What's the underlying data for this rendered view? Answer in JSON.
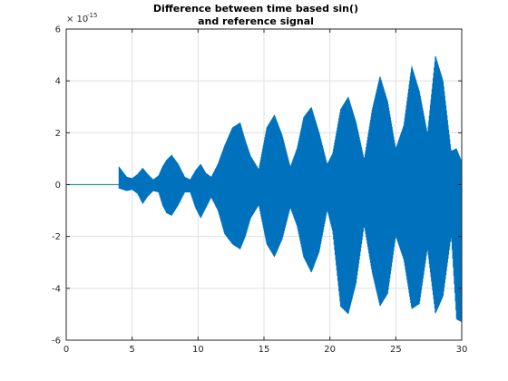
{
  "chart_data": {
    "type": "line",
    "title_line1": "Difference between time based sin()",
    "title_line2": "and reference signal",
    "xlabel": "",
    "ylabel": "",
    "xlim": [
      0,
      30
    ],
    "ylim": [
      -6,
      6
    ],
    "y_exponent_base": "× 10",
    "y_exponent_power": "-15",
    "x_ticks": [
      0,
      5,
      10,
      15,
      20,
      25,
      30
    ],
    "x_tick_labels": [
      "0",
      "5",
      "10",
      "15",
      "20",
      "25",
      "30"
    ],
    "y_ticks": [
      -6,
      -4,
      -2,
      0,
      2,
      4,
      6
    ],
    "y_tick_labels": [
      "-6",
      "-4",
      "-2",
      "0",
      "2",
      "4",
      "6"
    ],
    "grid": true,
    "colors": {
      "line": "#0072BD",
      "zero_line": "#2A9D8F",
      "grid": "#DFDFDF",
      "axis": "#262626"
    },
    "flat_until": 4.0,
    "envelope": {
      "x": [
        4.0,
        4.3,
        4.6,
        5.0,
        5.4,
        5.8,
        6.2,
        6.6,
        7.0,
        7.3,
        7.6,
        8.0,
        8.5,
        9.0,
        9.4,
        9.8,
        10.2,
        10.6,
        11.0,
        11.5,
        12.0,
        12.6,
        13.2,
        13.6,
        14.0,
        14.6,
        15.2,
        15.8,
        16.4,
        17.0,
        17.5,
        18.0,
        18.6,
        19.2,
        19.8,
        20.2,
        20.8,
        21.4,
        22.0,
        22.6,
        23.2,
        23.8,
        24.4,
        25.0,
        25.6,
        26.2,
        26.8,
        27.4,
        28.0,
        28.6,
        29.2,
        29.6,
        30.0
      ],
      "upper": [
        0.7,
        0.5,
        0.3,
        0.25,
        0.4,
        0.65,
        0.4,
        0.2,
        0.35,
        0.7,
        0.95,
        1.15,
        0.8,
        0.3,
        0.2,
        0.55,
        0.8,
        0.45,
        0.3,
        0.8,
        1.5,
        2.2,
        2.4,
        1.7,
        1.1,
        0.6,
        2.2,
        2.7,
        1.9,
        0.7,
        1.4,
        2.6,
        3.0,
        2.0,
        0.8,
        1.2,
        2.9,
        3.4,
        2.4,
        1.0,
        2.9,
        4.2,
        3.2,
        1.4,
        2.3,
        4.6,
        3.6,
        2.0,
        5.0,
        4.0,
        1.3,
        1.4,
        0.9
      ],
      "lower": [
        -0.15,
        -0.2,
        -0.25,
        -0.2,
        -0.35,
        -0.75,
        -0.45,
        -0.25,
        -0.3,
        -0.8,
        -1.1,
        -1.2,
        -0.8,
        -0.3,
        -0.3,
        -0.9,
        -1.3,
        -0.9,
        -0.5,
        -1.0,
        -1.9,
        -2.3,
        -2.5,
        -2.0,
        -1.3,
        -0.8,
        -2.3,
        -2.8,
        -2.1,
        -0.9,
        -1.6,
        -2.8,
        -3.4,
        -2.6,
        -1.0,
        -1.8,
        -4.7,
        -5.0,
        -3.8,
        -1.6,
        -3.4,
        -4.7,
        -4.2,
        -2.0,
        -2.9,
        -4.8,
        -4.6,
        -2.5,
        -5.0,
        -4.3,
        -2.0,
        -5.2,
        -5.3
      ]
    }
  }
}
